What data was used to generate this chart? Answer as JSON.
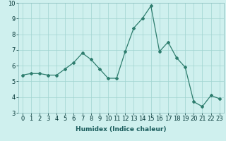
{
  "x": [
    0,
    1,
    2,
    3,
    4,
    5,
    6,
    7,
    8,
    9,
    10,
    11,
    12,
    13,
    14,
    15,
    16,
    17,
    18,
    19,
    20,
    21,
    22,
    23
  ],
  "y": [
    5.4,
    5.5,
    5.5,
    5.4,
    5.4,
    5.8,
    6.2,
    6.8,
    6.4,
    5.8,
    5.2,
    5.2,
    6.9,
    8.4,
    9.0,
    9.8,
    6.9,
    7.5,
    6.5,
    5.9,
    3.7,
    3.4,
    4.1,
    3.9
  ],
  "xlabel": "Humidex (Indice chaleur)",
  "ylim": [
    3,
    10
  ],
  "xlim_min": -0.5,
  "xlim_max": 23.5,
  "yticks": [
    3,
    4,
    5,
    6,
    7,
    8,
    9,
    10
  ],
  "xticks": [
    0,
    1,
    2,
    3,
    4,
    5,
    6,
    7,
    8,
    9,
    10,
    11,
    12,
    13,
    14,
    15,
    16,
    17,
    18,
    19,
    20,
    21,
    22,
    23
  ],
  "line_color": "#2e7d6e",
  "marker": "D",
  "marker_size": 2.0,
  "bg_color": "#cff0ee",
  "grid_color": "#a0d4d0",
  "xlabel_fontsize": 6.5,
  "tick_fontsize": 6.0,
  "linewidth": 0.9
}
